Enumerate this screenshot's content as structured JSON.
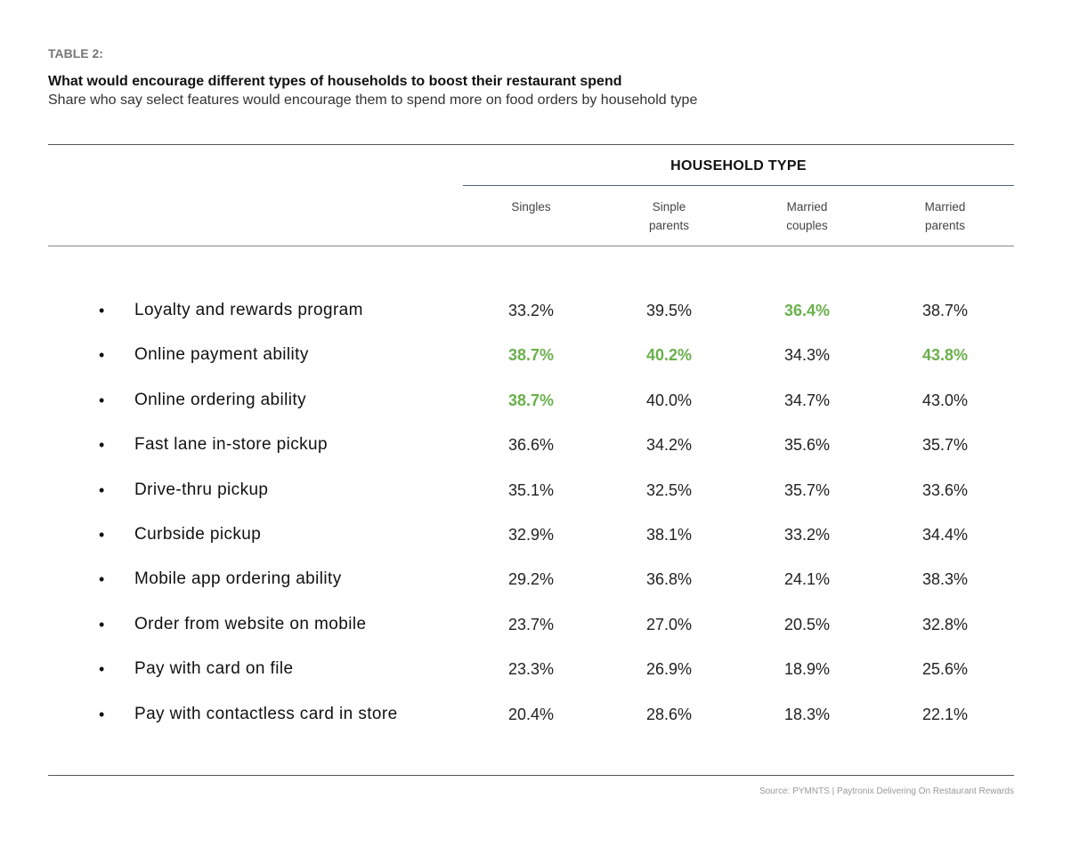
{
  "header": {
    "table_label": "TABLE 2:",
    "title": "What would encourage different types of households to boost their restaurant spend",
    "subtitle": "Share who say select features would encourage them to spend more on food orders by household type"
  },
  "columns": {
    "group_label": "HOUSEHOLD TYPE",
    "items": [
      {
        "line1": "Singles",
        "line2": ""
      },
      {
        "line1": "Sinple",
        "line2": "parents"
      },
      {
        "line1": "Married",
        "line2": "couples"
      },
      {
        "line1": "Married",
        "line2": "parents"
      }
    ]
  },
  "colors": {
    "highlight": "#6ab04c"
  },
  "rows": [
    {
      "label": "Loyalty and rewards program",
      "values": [
        "33.2%",
        "39.5%",
        "36.4%",
        "38.7%"
      ],
      "highlight": [
        false,
        false,
        true,
        false
      ]
    },
    {
      "label": "Online payment ability",
      "values": [
        "38.7%",
        "40.2%",
        "34.3%",
        "43.8%"
      ],
      "highlight": [
        true,
        true,
        false,
        true
      ]
    },
    {
      "label": "Online ordering ability",
      "values": [
        "38.7%",
        "40.0%",
        "34.7%",
        "43.0%"
      ],
      "highlight": [
        true,
        false,
        false,
        false
      ]
    },
    {
      "label": "Fast lane in-store pickup",
      "values": [
        "36.6%",
        "34.2%",
        "35.6%",
        "35.7%"
      ],
      "highlight": [
        false,
        false,
        false,
        false
      ]
    },
    {
      "label": "Drive-thru pickup",
      "values": [
        "35.1%",
        "32.5%",
        "35.7%",
        "33.6%"
      ],
      "highlight": [
        false,
        false,
        false,
        false
      ]
    },
    {
      "label": "Curbside pickup",
      "values": [
        "32.9%",
        "38.1%",
        "33.2%",
        "34.4%"
      ],
      "highlight": [
        false,
        false,
        false,
        false
      ]
    },
    {
      "label": "Mobile app ordering ability",
      "values": [
        "29.2%",
        "36.8%",
        "24.1%",
        "38.3%"
      ],
      "highlight": [
        false,
        false,
        false,
        false
      ]
    },
    {
      "label": "Order from website on mobile",
      "values": [
        "23.7%",
        "27.0%",
        "20.5%",
        "32.8%"
      ],
      "highlight": [
        false,
        false,
        false,
        false
      ]
    },
    {
      "label": "Pay with card on file",
      "values": [
        "23.3%",
        "26.9%",
        "18.9%",
        "25.6%"
      ],
      "highlight": [
        false,
        false,
        false,
        false
      ]
    },
    {
      "label": "Pay with contactless card in store",
      "values": [
        "20.4%",
        "28.6%",
        "18.3%",
        "22.1%"
      ],
      "highlight": [
        false,
        false,
        false,
        false
      ]
    }
  ],
  "bullet_char": "•",
  "footer": {
    "source": "Source: PYMNTS | Paytronix Delivering On Restaurant Rewards"
  }
}
